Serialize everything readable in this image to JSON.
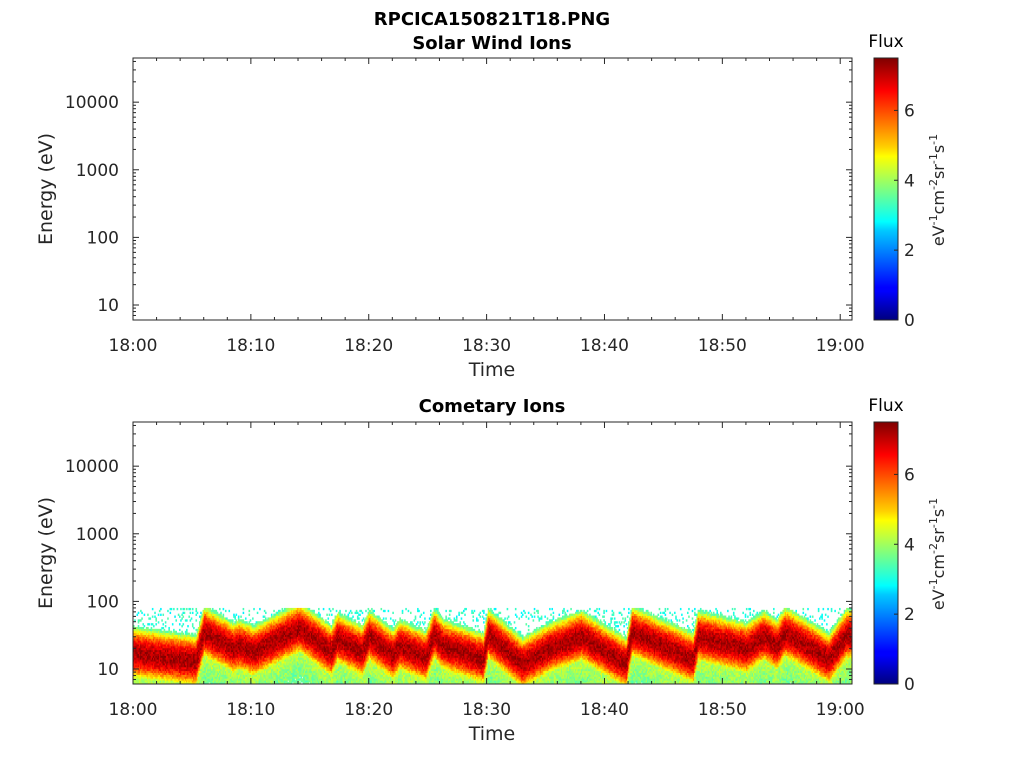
{
  "figure": {
    "title": "RPCICA150821T18.PNG"
  },
  "chart_data": [
    {
      "type": "heatmap",
      "title": "Solar Wind Ions",
      "xlabel": "Time",
      "ylabel": "Energy (eV)",
      "x_ticks": [
        "18:00",
        "18:10",
        "18:20",
        "18:30",
        "18:40",
        "18:50",
        "19:00"
      ],
      "xlim_minutes": [
        0,
        61
      ],
      "y_scale": "log",
      "y_ticks": [
        10,
        100,
        1000,
        10000
      ],
      "y_tick_labels": [
        "10",
        "100",
        "1000",
        "10000"
      ],
      "ylim": [
        6,
        45000
      ],
      "colorbar": {
        "title": "Flux",
        "label": "eV-1cm-2sr-1s-1",
        "range": [
          0,
          7.5
        ],
        "ticks": [
          0,
          2,
          4,
          6
        ],
        "colormap": "jet"
      },
      "data": "empty"
    },
    {
      "type": "heatmap",
      "title": "Cometary Ions",
      "xlabel": "Time",
      "ylabel": "Energy (eV)",
      "x_ticks": [
        "18:00",
        "18:10",
        "18:20",
        "18:30",
        "18:40",
        "18:50",
        "19:00"
      ],
      "xlim_minutes": [
        0,
        61
      ],
      "y_scale": "log",
      "y_ticks": [
        10,
        100,
        1000,
        10000
      ],
      "y_tick_labels": [
        "10",
        "100",
        "1000",
        "10000"
      ],
      "ylim": [
        6,
        45000
      ],
      "colorbar": {
        "title": "Flux",
        "label": "eV-1cm-2sr-1s-1",
        "range": [
          0,
          7.5
        ],
        "ticks": [
          0,
          2,
          4,
          6
        ],
        "colormap": "jet"
      },
      "energy_range_with_signal_eV": [
        6,
        80
      ],
      "peak_flux_track": [
        {
          "t": 0.0,
          "e": 17
        },
        {
          "t": 5.3,
          "e": 13
        },
        {
          "t": 6.0,
          "e": 35
        },
        {
          "t": 8.5,
          "e": 20
        },
        {
          "t": 9.0,
          "e": 22
        },
        {
          "t": 10.2,
          "e": 18
        },
        {
          "t": 14.1,
          "e": 40
        },
        {
          "t": 16.8,
          "e": 18
        },
        {
          "t": 17.3,
          "e": 28
        },
        {
          "t": 19.4,
          "e": 18
        },
        {
          "t": 20.0,
          "e": 30
        },
        {
          "t": 22.0,
          "e": 16
        },
        {
          "t": 22.6,
          "e": 22
        },
        {
          "t": 24.8,
          "e": 15
        },
        {
          "t": 25.5,
          "e": 32
        },
        {
          "t": 26.3,
          "e": 22
        },
        {
          "t": 29.7,
          "e": 14
        },
        {
          "t": 30.1,
          "e": 32
        },
        {
          "t": 33.0,
          "e": 12
        },
        {
          "t": 35.3,
          "e": 20
        },
        {
          "t": 38.0,
          "e": 30
        },
        {
          "t": 41.8,
          "e": 12
        },
        {
          "t": 42.3,
          "e": 35
        },
        {
          "t": 47.5,
          "e": 14
        },
        {
          "t": 47.9,
          "e": 30
        },
        {
          "t": 52.0,
          "e": 20
        },
        {
          "t": 53.5,
          "e": 30
        },
        {
          "t": 54.6,
          "e": 22
        },
        {
          "t": 55.3,
          "e": 34
        },
        {
          "t": 58.0,
          "e": 18
        },
        {
          "t": 59.0,
          "e": 14
        },
        {
          "t": 60.5,
          "e": 32
        }
      ]
    }
  ]
}
